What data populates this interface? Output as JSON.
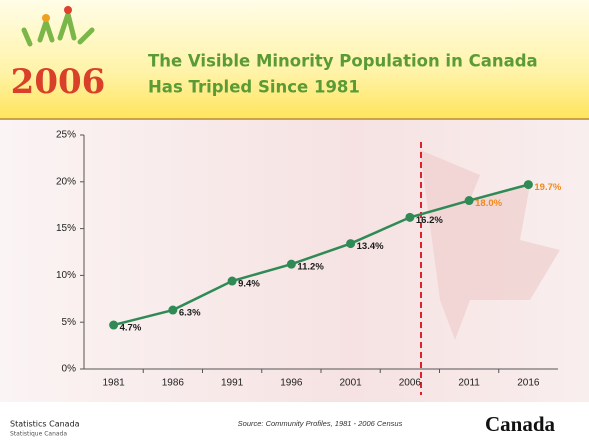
{
  "header": {
    "logo": "2006",
    "title": [
      "The Visible Minority Population in Canada",
      "Has Tripled Since 1981"
    ]
  },
  "chart_data": {
    "type": "line",
    "categories": [
      "1981",
      "1986",
      "1991",
      "1996",
      "2001",
      "2006",
      "2011",
      "2016"
    ],
    "series": [
      {
        "color": "#2f8a55",
        "values": [
          4.7,
          6.3,
          9.4,
          11.2,
          13.4,
          16.2,
          18.0,
          19.7
        ],
        "value_labels": [
          "4.7%",
          "6.3%",
          "9.4%",
          "11.2%",
          "13.4%",
          "16.2%",
          "18.0%",
          "19.7%"
        ],
        "value_label_colors": [
          "#1a1a1a",
          "#1a1a1a",
          "#1a1a1a",
          "#1a1a1a",
          "#1a1a1a",
          "#1a1a1a",
          "#f08a1c",
          "#f08a1c"
        ]
      }
    ],
    "ylim": [
      0,
      25
    ],
    "yticks": [
      {
        "value": 0,
        "label": "0%"
      },
      {
        "value": 5,
        "label": "5%"
      },
      {
        "value": 10,
        "label": "10%"
      },
      {
        "value": 15,
        "label": "15%"
      },
      {
        "value": 20,
        "label": "20%"
      },
      {
        "value": 25,
        "label": "25%"
      }
    ]
  },
  "footer": {
    "agency_en": "Statistics Canada",
    "agency_fr": "Statistique Canada",
    "source": "Source: Community Profiles, 1981 - 2006 Census",
    "wordmark": "Canada"
  }
}
